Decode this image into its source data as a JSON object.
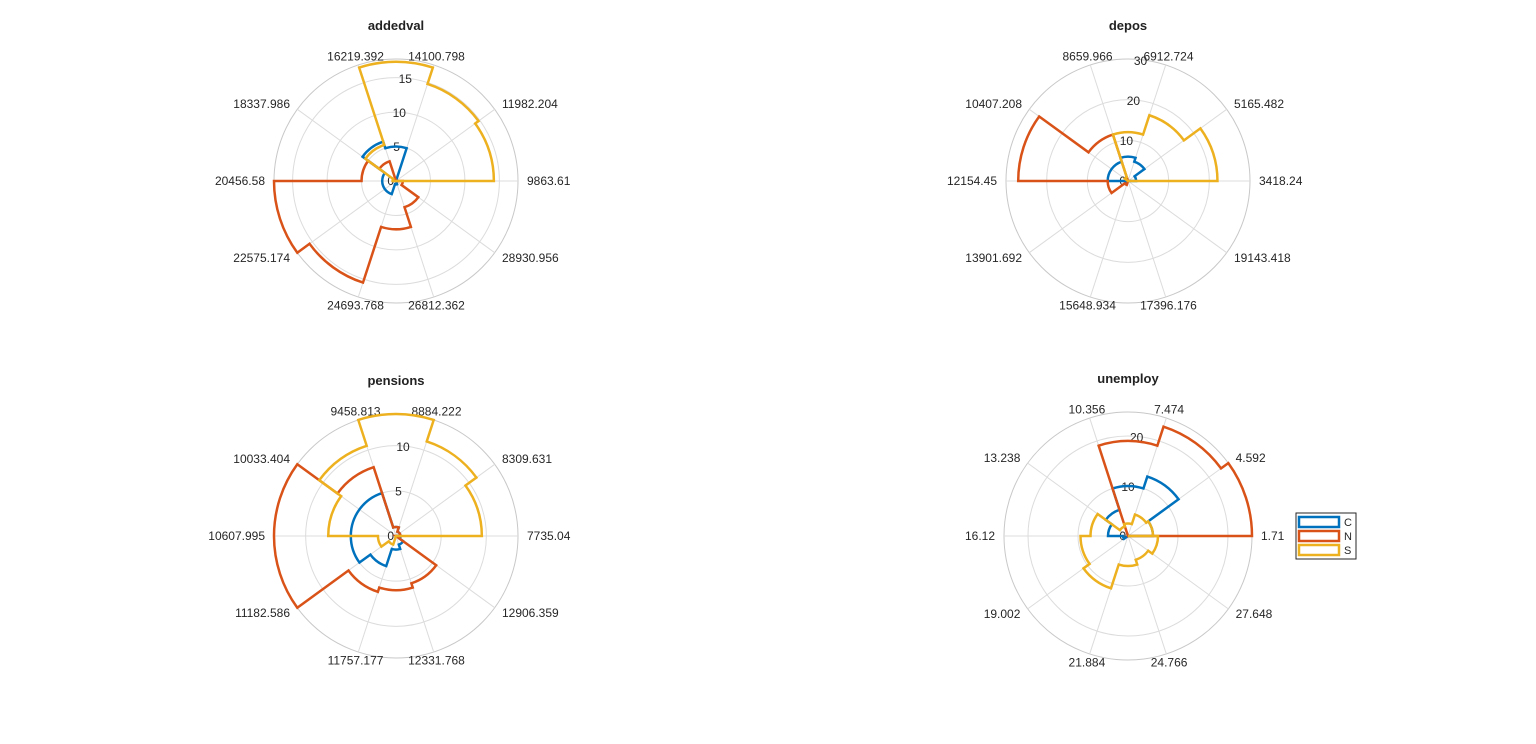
{
  "figure": {
    "legend": {
      "entries": [
        {
          "label": "C",
          "color": "#0072BD"
        },
        {
          "label": "N",
          "color": "#D95319"
        },
        {
          "label": "S",
          "color": "#EDB120"
        }
      ]
    }
  },
  "chart_data": [
    {
      "type": "polar-histogram",
      "title": "addedval",
      "bin_edges": [
        "9863.61",
        "11982.204",
        "14100.798",
        "16219.392",
        "18337.986",
        "20456.58",
        "22575.174",
        "24693.768",
        "26812.362",
        "28930.956"
      ],
      "r_ticks": [
        0,
        5,
        10,
        15
      ],
      "r_max": 17.7,
      "series": [
        {
          "name": "C",
          "values": [
            0,
            0,
            5,
            6,
            2,
            2,
            2,
            0.5,
            0,
            0
          ]
        },
        {
          "name": "N",
          "values": [
            0,
            0,
            0,
            3,
            5,
            17.7,
            15.5,
            7,
            4,
            1
          ]
        },
        {
          "name": "S",
          "values": [
            14.2,
            14.8,
            17.3,
            5.5,
            0.5,
            0,
            0,
            0,
            0,
            0
          ]
        }
      ]
    },
    {
      "type": "polar-histogram",
      "title": "depos",
      "bin_edges": [
        "3418.24",
        "5165.482",
        "6912.724",
        "8659.966",
        "10407.208",
        "12154.45",
        "13901.692",
        "15648.934",
        "17396.176",
        "19143.418"
      ],
      "r_ticks": [
        0,
        10,
        20,
        30
      ],
      "r_max": 30,
      "series": [
        {
          "name": "C",
          "values": [
            2,
            5,
            6,
            5,
            5,
            0.5,
            0,
            0,
            0,
            0
          ]
        },
        {
          "name": "N",
          "values": [
            0,
            0,
            0,
            12,
            27,
            5,
            1,
            0,
            0,
            0
          ]
        },
        {
          "name": "S",
          "values": [
            22,
            17,
            12,
            1,
            0,
            0,
            0,
            0,
            0,
            0
          ]
        }
      ]
    },
    {
      "type": "polar-histogram",
      "title": "pensions",
      "bin_edges": [
        "7735.04",
        "8309.631",
        "8884.222",
        "9458.813",
        "10033.404",
        "10607.995",
        "11182.586",
        "11757.177",
        "12331.768",
        "12906.359"
      ],
      "r_ticks": [
        0,
        5,
        10
      ],
      "r_max": 13.5,
      "series": [
        {
          "name": "C",
          "values": [
            0.5,
            0.5,
            1,
            5,
            5,
            5,
            3.5,
            1.5,
            1,
            0.5
          ]
        },
        {
          "name": "N",
          "values": [
            0.5,
            0.5,
            1,
            8,
            13.5,
            13.5,
            6.5,
            6,
            5.5,
            0
          ]
        },
        {
          "name": "S",
          "values": [
            9.5,
            11,
            13.5,
            10.5,
            7.5,
            2,
            1,
            0,
            0,
            0
          ]
        }
      ]
    },
    {
      "type": "polar-histogram",
      "title": "unemploy",
      "bin_edges": [
        "1.71",
        "4.592",
        "7.474",
        "10.356",
        "13.238",
        "16.12",
        "19.002",
        "21.884",
        "24.766",
        "27.648"
      ],
      "r_ticks": [
        0,
        10,
        20
      ],
      "r_max": 24.8,
      "series": [
        {
          "name": "C",
          "values": [
            5,
            12.5,
            10,
            5.5,
            4,
            1,
            0,
            0,
            0,
            0
          ]
        },
        {
          "name": "N",
          "values": [
            24.8,
            23,
            19,
            0,
            0,
            0,
            0,
            0,
            0,
            0
          ]
        },
        {
          "name": "S",
          "values": [
            5,
            4.5,
            2.5,
            2,
            7.5,
            9.5,
            11,
            6,
            5,
            6
          ]
        }
      ]
    }
  ]
}
